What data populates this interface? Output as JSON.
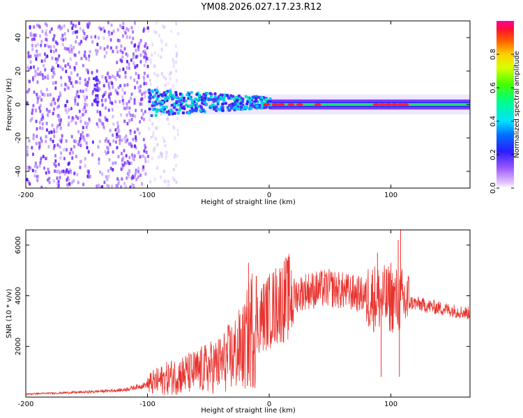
{
  "title": "YM08.2026.027.17.23.R12",
  "chart_data": [
    {
      "type": "heatmap",
      "title": "YM08.2026.027.17.23.R12",
      "xlabel": "Height of straight line (km)",
      "ylabel": "Frequency (Hz)",
      "xlim": [
        -200,
        165
      ],
      "ylim": [
        -50,
        50
      ],
      "x_ticks": [
        -200,
        -100,
        0,
        100
      ],
      "y_ticks": [
        -40,
        -20,
        0,
        20,
        40
      ],
      "colorbar": {
        "label": "Normalized spectral amplitude",
        "range": [
          0,
          1
        ],
        "ticks": [
          0.0,
          0.2,
          0.4,
          0.6,
          0.8
        ]
      }
    },
    {
      "type": "line",
      "xlabel": "Height of straight line (km)",
      "ylabel": "SNR (10 * v/v)",
      "xlim": [
        -200,
        165
      ],
      "ylim": [
        0,
        6600
      ],
      "x_ticks": [
        -200,
        -100,
        0,
        100
      ],
      "y_ticks": [
        2000,
        4000,
        6000
      ],
      "line_color": "#e8332e",
      "envelope": [
        {
          "x": -200,
          "y": 120
        },
        {
          "x": -150,
          "y": 200
        },
        {
          "x": -120,
          "y": 280
        },
        {
          "x": -100,
          "y": 500
        },
        {
          "x": -80,
          "y": 800
        },
        {
          "x": -60,
          "y": 1000
        },
        {
          "x": -40,
          "y": 1300
        },
        {
          "x": -20,
          "y": 2000
        },
        {
          "x": -15,
          "y": 2700
        },
        {
          "x": -5,
          "y": 3200
        },
        {
          "x": 10,
          "y": 3800
        },
        {
          "x": 30,
          "y": 4200
        },
        {
          "x": 50,
          "y": 4300
        },
        {
          "x": 70,
          "y": 4100
        },
        {
          "x": 90,
          "y": 3900
        },
        {
          "x": 110,
          "y": 3800
        },
        {
          "x": 130,
          "y": 3600
        },
        {
          "x": 165,
          "y": 3300
        }
      ],
      "spikes": [
        {
          "x": -17,
          "y": 5300
        },
        {
          "x": 89,
          "y": 5700
        },
        {
          "x": 92,
          "y": 800
        },
        {
          "x": 100,
          "y": 5300
        },
        {
          "x": 106,
          "y": 6200
        },
        {
          "x": 107,
          "y": 800
        },
        {
          "x": 108,
          "y": 6600
        }
      ]
    }
  ]
}
